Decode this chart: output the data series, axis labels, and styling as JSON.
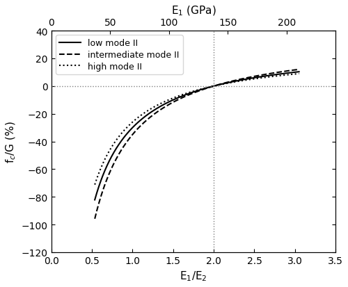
{
  "x_ratio_min": 0.0,
  "x_ratio_max": 3.5,
  "y_min": -120,
  "y_max": 40,
  "x_top_ticks": [
    0,
    50,
    100,
    150,
    200
  ],
  "x_bottom_ticks": [
    0.0,
    0.5,
    1.0,
    1.5,
    2.0,
    2.5,
    3.0,
    3.5
  ],
  "y_ticks": [
    -120,
    -100,
    -80,
    -60,
    -40,
    -20,
    0,
    20,
    40
  ],
  "vline_x": 2.0,
  "hline_y": 0.0,
  "xlabel_bottom": "E$_1$/E$_2$",
  "xlabel_top": "E$_1$ (GPa)",
  "ylabel": "f$_c$/G (%)",
  "legend_labels": [
    "low mode II",
    "intermediate mode II",
    "high mode II"
  ],
  "legend_styles": [
    "solid",
    "dashed",
    "dotted"
  ],
  "E2_ref": 69.0,
  "curve_x_start": 0.5,
  "curve_x_end": 3.05,
  "color": "#000000",
  "line_width": 1.5,
  "figsize": [
    5.0,
    4.14
  ],
  "dpi": 100,
  "low_params": [
    90.0,
    0.55
  ],
  "inter_params": [
    105.0,
    0.55
  ],
  "high_params": [
    75.0,
    0.55
  ],
  "low_end": 12.0,
  "inter_end": 14.0,
  "high_end": 10.0
}
